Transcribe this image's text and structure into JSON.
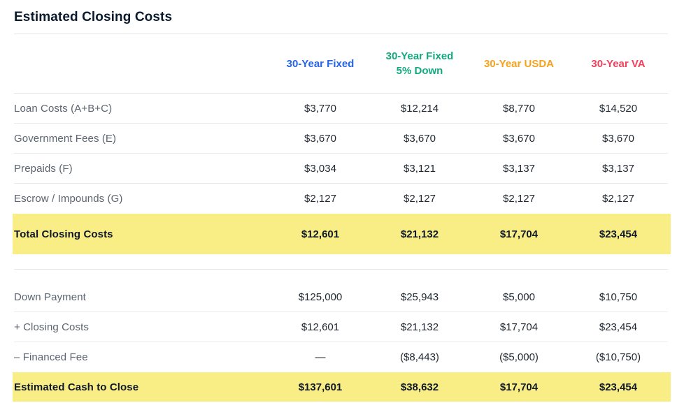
{
  "title": "Estimated Closing Costs",
  "colors": {
    "highlight_row": "#f9ee86",
    "divider": "#e0e6ea",
    "label_text": "#5b6470",
    "value_text": "#1e2630",
    "title_text": "#0c1a2e"
  },
  "table": {
    "columns": [
      {
        "lines": [
          "30-Year Fixed"
        ],
        "color": "#2563eb"
      },
      {
        "lines": [
          "30-Year Fixed",
          "5% Down"
        ],
        "color": "#13a97e"
      },
      {
        "lines": [
          "30-Year USDA"
        ],
        "color": "#f6a21c"
      },
      {
        "lines": [
          "30-Year VA"
        ],
        "color": "#f2415c"
      }
    ],
    "sections": [
      {
        "name": "closing-costs",
        "rows": [
          {
            "label": "Loan Costs (A+B+C)",
            "values": [
              "$3,770",
              "$12,214",
              "$8,770",
              "$14,520"
            ],
            "highlight": false
          },
          {
            "label": "Government Fees (E)",
            "values": [
              "$3,670",
              "$3,670",
              "$3,670",
              "$3,670"
            ],
            "highlight": false
          },
          {
            "label": "Prepaids (F)",
            "values": [
              "$3,034",
              "$3,121",
              "$3,137",
              "$3,137"
            ],
            "highlight": false
          },
          {
            "label": "Escrow / Impounds (G)",
            "values": [
              "$2,127",
              "$2,127",
              "$2,127",
              "$2,127"
            ],
            "highlight": false
          },
          {
            "label": "Total Closing Costs",
            "values": [
              "$12,601",
              "$21,132",
              "$17,704",
              "$23,454"
            ],
            "highlight": true
          }
        ]
      },
      {
        "name": "cash-to-close",
        "rows": [
          {
            "label": "Down Payment",
            "values": [
              "$125,000",
              "$25,943",
              "$5,000",
              "$10,750"
            ],
            "highlight": false
          },
          {
            "label": "+ Closing Costs",
            "values": [
              "$12,601",
              "$21,132",
              "$17,704",
              "$23,454"
            ],
            "highlight": false
          },
          {
            "label": "– Financed Fee",
            "values": [
              "—",
              "($8,443)",
              "($5,000)",
              "($10,750)"
            ],
            "highlight": false
          },
          {
            "label": "Estimated Cash to Close",
            "values": [
              "$137,601",
              "$38,632",
              "$17,704",
              "$23,454"
            ],
            "highlight": true
          }
        ]
      }
    ]
  }
}
